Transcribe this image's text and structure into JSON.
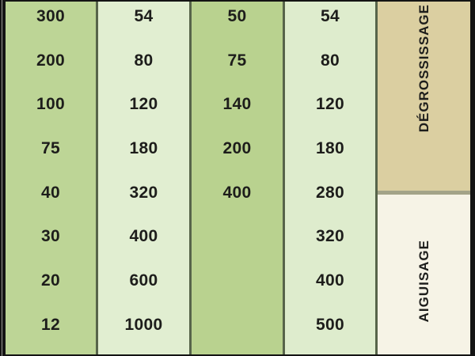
{
  "grit_table": {
    "columns": [
      {
        "name": "grain-column-1",
        "values": [
          "300",
          "200",
          "100",
          "75",
          "40",
          "30",
          "20",
          "12"
        ]
      },
      {
        "name": "grit-column-2",
        "values": [
          "54",
          "80",
          "120",
          "180",
          "320",
          "400",
          "600",
          "1000"
        ]
      },
      {
        "name": "grain-column-3",
        "values": [
          "50",
          "75",
          "140",
          "200",
          "400",
          "",
          "",
          ""
        ]
      },
      {
        "name": "grit-column-4",
        "values": [
          "54",
          "80",
          "120",
          "180",
          "280",
          "320",
          "400",
          "500"
        ]
      }
    ],
    "sections": [
      {
        "label": "DÉGROSSISSAGE"
      },
      {
        "label": "AIGUISAGE"
      }
    ],
    "colors": {
      "green_medium": "#bdd596",
      "green_light": "#e1eed1",
      "divider_olive": "#57644a",
      "tan_section": "#dbcfa1",
      "cream_section": "#f6f3e6",
      "text": "#1d1d1b"
    }
  }
}
